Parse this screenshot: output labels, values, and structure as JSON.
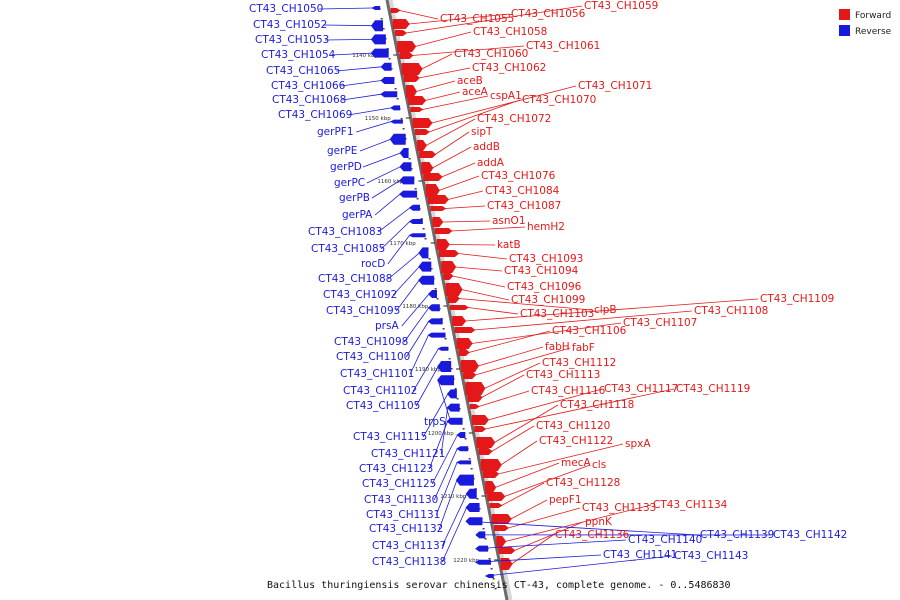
{
  "caption": "Bacillus thuringiensis serovar chinensis CT-43, complete genome. - 0..5486830",
  "legend": [
    {
      "label": "Forward",
      "color": "#e41818"
    },
    {
      "label": "Reverse",
      "color": "#1a1adc"
    }
  ],
  "ticks": [
    "1140 kbp",
    "1150 kbp",
    "1160 kbp",
    "1170 kbp",
    "1180 kbp",
    "1190 kbp",
    "1200 kbp",
    "1210 kbp",
    "1220 kbp"
  ],
  "forward_genes": [
    "CT43_CH1055",
    "CT43_CH1056",
    "CT43_CH1059",
    "CT43_CH1058",
    "CT43_CH1061",
    "CT43_CH1060",
    "CT43_CH1062",
    "aceB",
    "aceA",
    "cspA1",
    "CT43_CH1071",
    "CT43_CH1070",
    "CT43_CH1072",
    "sipT",
    "addB",
    "addA",
    "CT43_CH1076",
    "CT43_CH1084",
    "CT43_CH1087",
    "asnO1",
    "hemH2",
    "katB",
    "CT43_CH1093",
    "CT43_CH1094",
    "CT43_CH1096",
    "CT43_CH1099",
    "clpB",
    "CT43_CH1103",
    "CT43_CH1109",
    "CT43_CH1108",
    "CT43_CH1107",
    "CT43_CH1106",
    "fabH",
    "fabF",
    "CT43_CH1112",
    "CT43_CH1113",
    "CT43_CH1116",
    "CT43_CH1117",
    "CT43_CH1119",
    "CT43_CH1118",
    "CT43_CH1120",
    "CT43_CH1122",
    "spxA",
    "mecA",
    "cls",
    "CT43_CH1128",
    "pepF1",
    "CT43_CH1133",
    "CT43_CH1134",
    "ppnK",
    "CT43_CH1136"
  ],
  "reverse_genes": [
    "CT43_CH1050",
    "CT43_CH1052",
    "CT43_CH1053",
    "CT43_CH1054",
    "CT43_CH1065",
    "CT43_CH1066",
    "CT43_CH1068",
    "CT43_CH1069",
    "gerPF1",
    "gerPE",
    "gerPD",
    "gerPC",
    "gerPB",
    "gerPA",
    "CT43_CH1083",
    "CT43_CH1085",
    "rocD",
    "CT43_CH1088",
    "CT43_CH1092",
    "CT43_CH1095",
    "prsA",
    "CT43_CH1098",
    "CT43_CH1100",
    "CT43_CH1101",
    "CT43_CH1102",
    "CT43_CH1105",
    "trpS",
    "CT43_CH1115",
    "CT43_CH1121",
    "CT43_CH1123",
    "CT43_CH1125",
    "CT43_CH1130",
    "CT43_CH1131",
    "CT43_CH1132",
    "CT43_CH1137",
    "CT43_CH1138",
    "CT43_CH1139",
    "CT43_CH1142",
    "CT43_CH1140",
    "CT43_CH1141",
    "CT43_CH1143"
  ]
}
